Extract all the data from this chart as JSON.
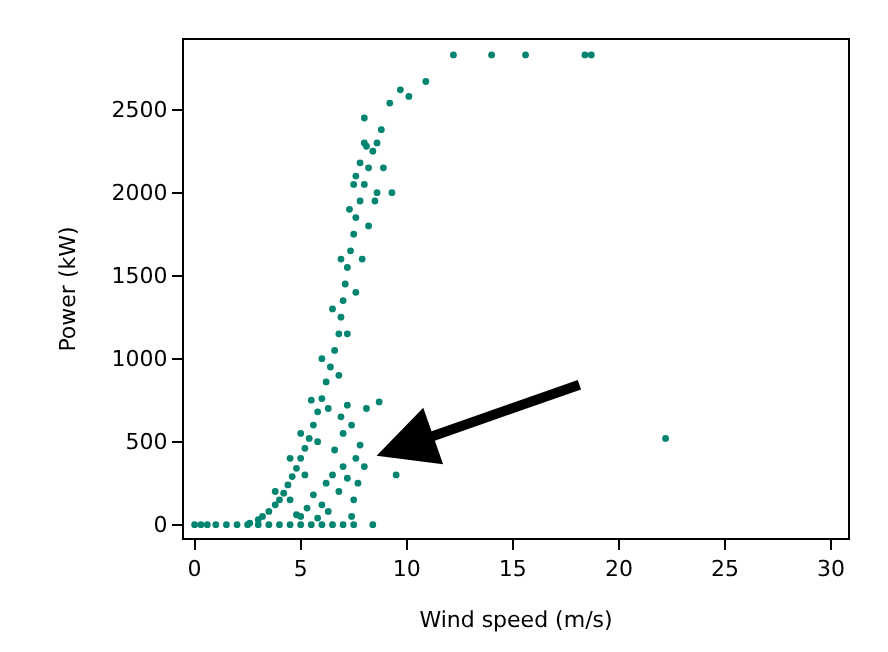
{
  "chart_data": {
    "type": "scatter",
    "xlabel": "Wind speed (m/s)",
    "ylabel": "Power (kW)",
    "marker": "circle",
    "xlim": [
      -0.5,
      30.8
    ],
    "ylim": [
      -80,
      2920
    ],
    "xticks": [
      0,
      5,
      10,
      15,
      20,
      25,
      30
    ],
    "yticks": [
      0,
      500,
      1000,
      1500,
      2000,
      2500
    ],
    "series": [
      {
        "color": "#018571",
        "x": [
          0,
          0.3,
          0.6,
          1,
          1.5,
          2,
          2.5,
          3,
          3.5,
          4,
          4.5,
          5,
          5.5,
          6,
          6.5,
          7,
          7.5,
          8.4,
          2.6,
          3,
          3.2,
          3.5,
          3.8,
          4,
          4.2,
          4.4,
          4.6,
          4.8,
          5,
          5.2,
          5.4,
          5.6,
          5.8,
          6,
          6.2,
          6.4,
          6.6,
          6.8,
          6.9,
          7,
          7.1,
          7.2,
          7.35,
          7.5,
          7.6,
          7.8,
          8,
          8.2,
          8.4,
          8.6,
          8.1,
          7.8,
          3.8,
          4.5,
          5,
          5.5,
          6,
          6.5,
          6.9,
          7.3,
          7.6,
          8,
          4.5,
          5.2,
          5.8,
          6.3,
          6.8,
          7.2,
          7.6,
          7.9,
          8.2,
          8.6,
          8.9,
          5,
          5.3,
          5.6,
          6,
          6.2,
          6.5,
          6.8,
          7,
          7.2,
          7.5,
          7.6,
          6.6,
          7,
          7.4,
          7.8,
          8.1,
          7.2,
          6.9,
          7.7,
          8,
          6.3,
          7.4,
          5.8,
          4.8,
          8.7,
          9.5,
          7.5,
          8,
          8.8,
          9.2,
          9.7,
          10.1,
          10.9,
          12.2,
          14,
          15.6,
          18.4,
          18.7,
          22.2,
          8.5,
          9.3
        ],
        "values": [
          0,
          0,
          0,
          0,
          0,
          0,
          0,
          0,
          0,
          0,
          0,
          0,
          0,
          0,
          0,
          0,
          0,
          0,
          10,
          30,
          50,
          80,
          120,
          150,
          190,
          240,
          290,
          340,
          400,
          460,
          520,
          600,
          680,
          760,
          860,
          950,
          1050,
          1150,
          1250,
          1350,
          1450,
          1550,
          1650,
          1750,
          1850,
          1950,
          2050,
          2150,
          2250,
          2300,
          2280,
          2180,
          200,
          400,
          550,
          750,
          1000,
          1300,
          1600,
          1900,
          2100,
          2300,
          150,
          300,
          500,
          700,
          900,
          1150,
          1400,
          1600,
          1800,
          2000,
          2150,
          50,
          100,
          180,
          120,
          250,
          300,
          200,
          350,
          280,
          150,
          400,
          450,
          550,
          600,
          480,
          700,
          720,
          650,
          250,
          350,
          80,
          50,
          40,
          60,
          740,
          300,
          2050,
          2450,
          2380,
          2540,
          2620,
          2580,
          2670,
          2830,
          2830,
          2830,
          2830,
          2830,
          520,
          1950,
          2000
        ]
      }
    ]
  }
}
